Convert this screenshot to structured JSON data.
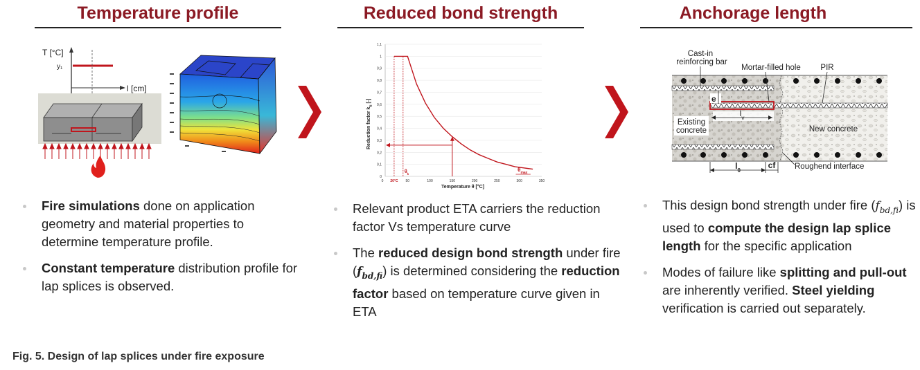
{
  "headings": {
    "col1": "Temperature profile",
    "col2": "Reduced bond strength",
    "col3": "Anchorage length"
  },
  "temp_diagram": {
    "y_axis_label": "T [°C]",
    "y1_label": "y₁",
    "x_axis_label": "l [cm]"
  },
  "bond_chart": {
    "ylabel": "Reduction factor k",
    "ylabel_sub": "fi",
    "ylabel_suffix": " [-]",
    "xlabel": "Temperature θ [°C]",
    "y_ticks": [
      "0",
      "0,1",
      "0,2",
      "0,3",
      "0,4",
      "0,5",
      "0,6",
      "0,7",
      "0,8",
      "0,9",
      "1",
      "1,1"
    ],
    "x_ticks": [
      "20°C",
      "50",
      "100",
      "150",
      "200",
      "250",
      "300",
      "350"
    ],
    "theta_k": "θ",
    "theta_k_sub": "k",
    "theta_max": "θ",
    "theta_max_sub": "max",
    "accent_color": "#c0151c"
  },
  "chart_data": {
    "type": "line",
    "xlabel": "Temperature θ [°C]",
    "ylabel": "Reduction factor kfi [-]",
    "xlim": [
      0,
      350
    ],
    "ylim": [
      0,
      1.1
    ],
    "series": [
      {
        "x": [
          20,
          40,
          50,
          70,
          90,
          110,
          130,
          150,
          170,
          190,
          210,
          230,
          250,
          270,
          290,
          310,
          330
        ],
        "values": [
          1,
          1,
          1,
          0.77,
          0.61,
          0.49,
          0.4,
          0.33,
          0.27,
          0.22,
          0.18,
          0.15,
          0.12,
          0.1,
          0.08,
          0.07,
          0.06
        ]
      }
    ]
  },
  "anchorage_diagram": {
    "label_cast_in_1": "Cast-in",
    "label_cast_in_2": "reinforcing bar",
    "label_mortar": "Mortar-filled hole",
    "label_pir": "PIR",
    "label_e": "e",
    "label_lv": "l",
    "label_lv_sub": "v",
    "label_existing_1": "Existing",
    "label_existing_2": "concrete",
    "label_new": "New concrete",
    "label_l0": "l",
    "label_l0_sub": "0",
    "label_cf": "cf",
    "label_roughend": "Roughend interface"
  },
  "col1_bullets": {
    "b1_bold": "Fire simulations",
    "b1_rest": " done on application geometry and material properties to determine temperature profile.",
    "b2_bold": "Constant temperature",
    "b2_rest": " distribution profile for lap splices is observed."
  },
  "col2_bullets": {
    "b1": "Relevant product ETA carriers the reduction factor Vs temperature curve",
    "b2_a": "The ",
    "b2_bold": "reduced design bond strength",
    "b2_b": " under fire (",
    "b2_math": "f",
    "b2_math_sub": "bd,fi",
    "b2_c": ") is determined considering the ",
    "b2_bold2": "reduction factor",
    "b2_d": " based on temperature curve given in ETA"
  },
  "col3_bullets": {
    "b1_a": "This design bond strength under fire (",
    "b1_math": "f",
    "b1_math_sub": "bd,fi",
    "b1_b": ") is used to ",
    "b1_bold": "compute the design lap splice length",
    "b1_c": " for the specific application",
    "b2_a": "Modes of failure like ",
    "b2_bold": "splitting and pull-out",
    "b2_b": " are inherently verified. ",
    "b2_bold2": "Steel yielding",
    "b2_c": " verification is carried out separately."
  },
  "caption": "Fig. 5. Design of lap splices under fire exposure",
  "icons": {
    "chevron": "chevron-right-icon",
    "fire": "flame-icon"
  }
}
